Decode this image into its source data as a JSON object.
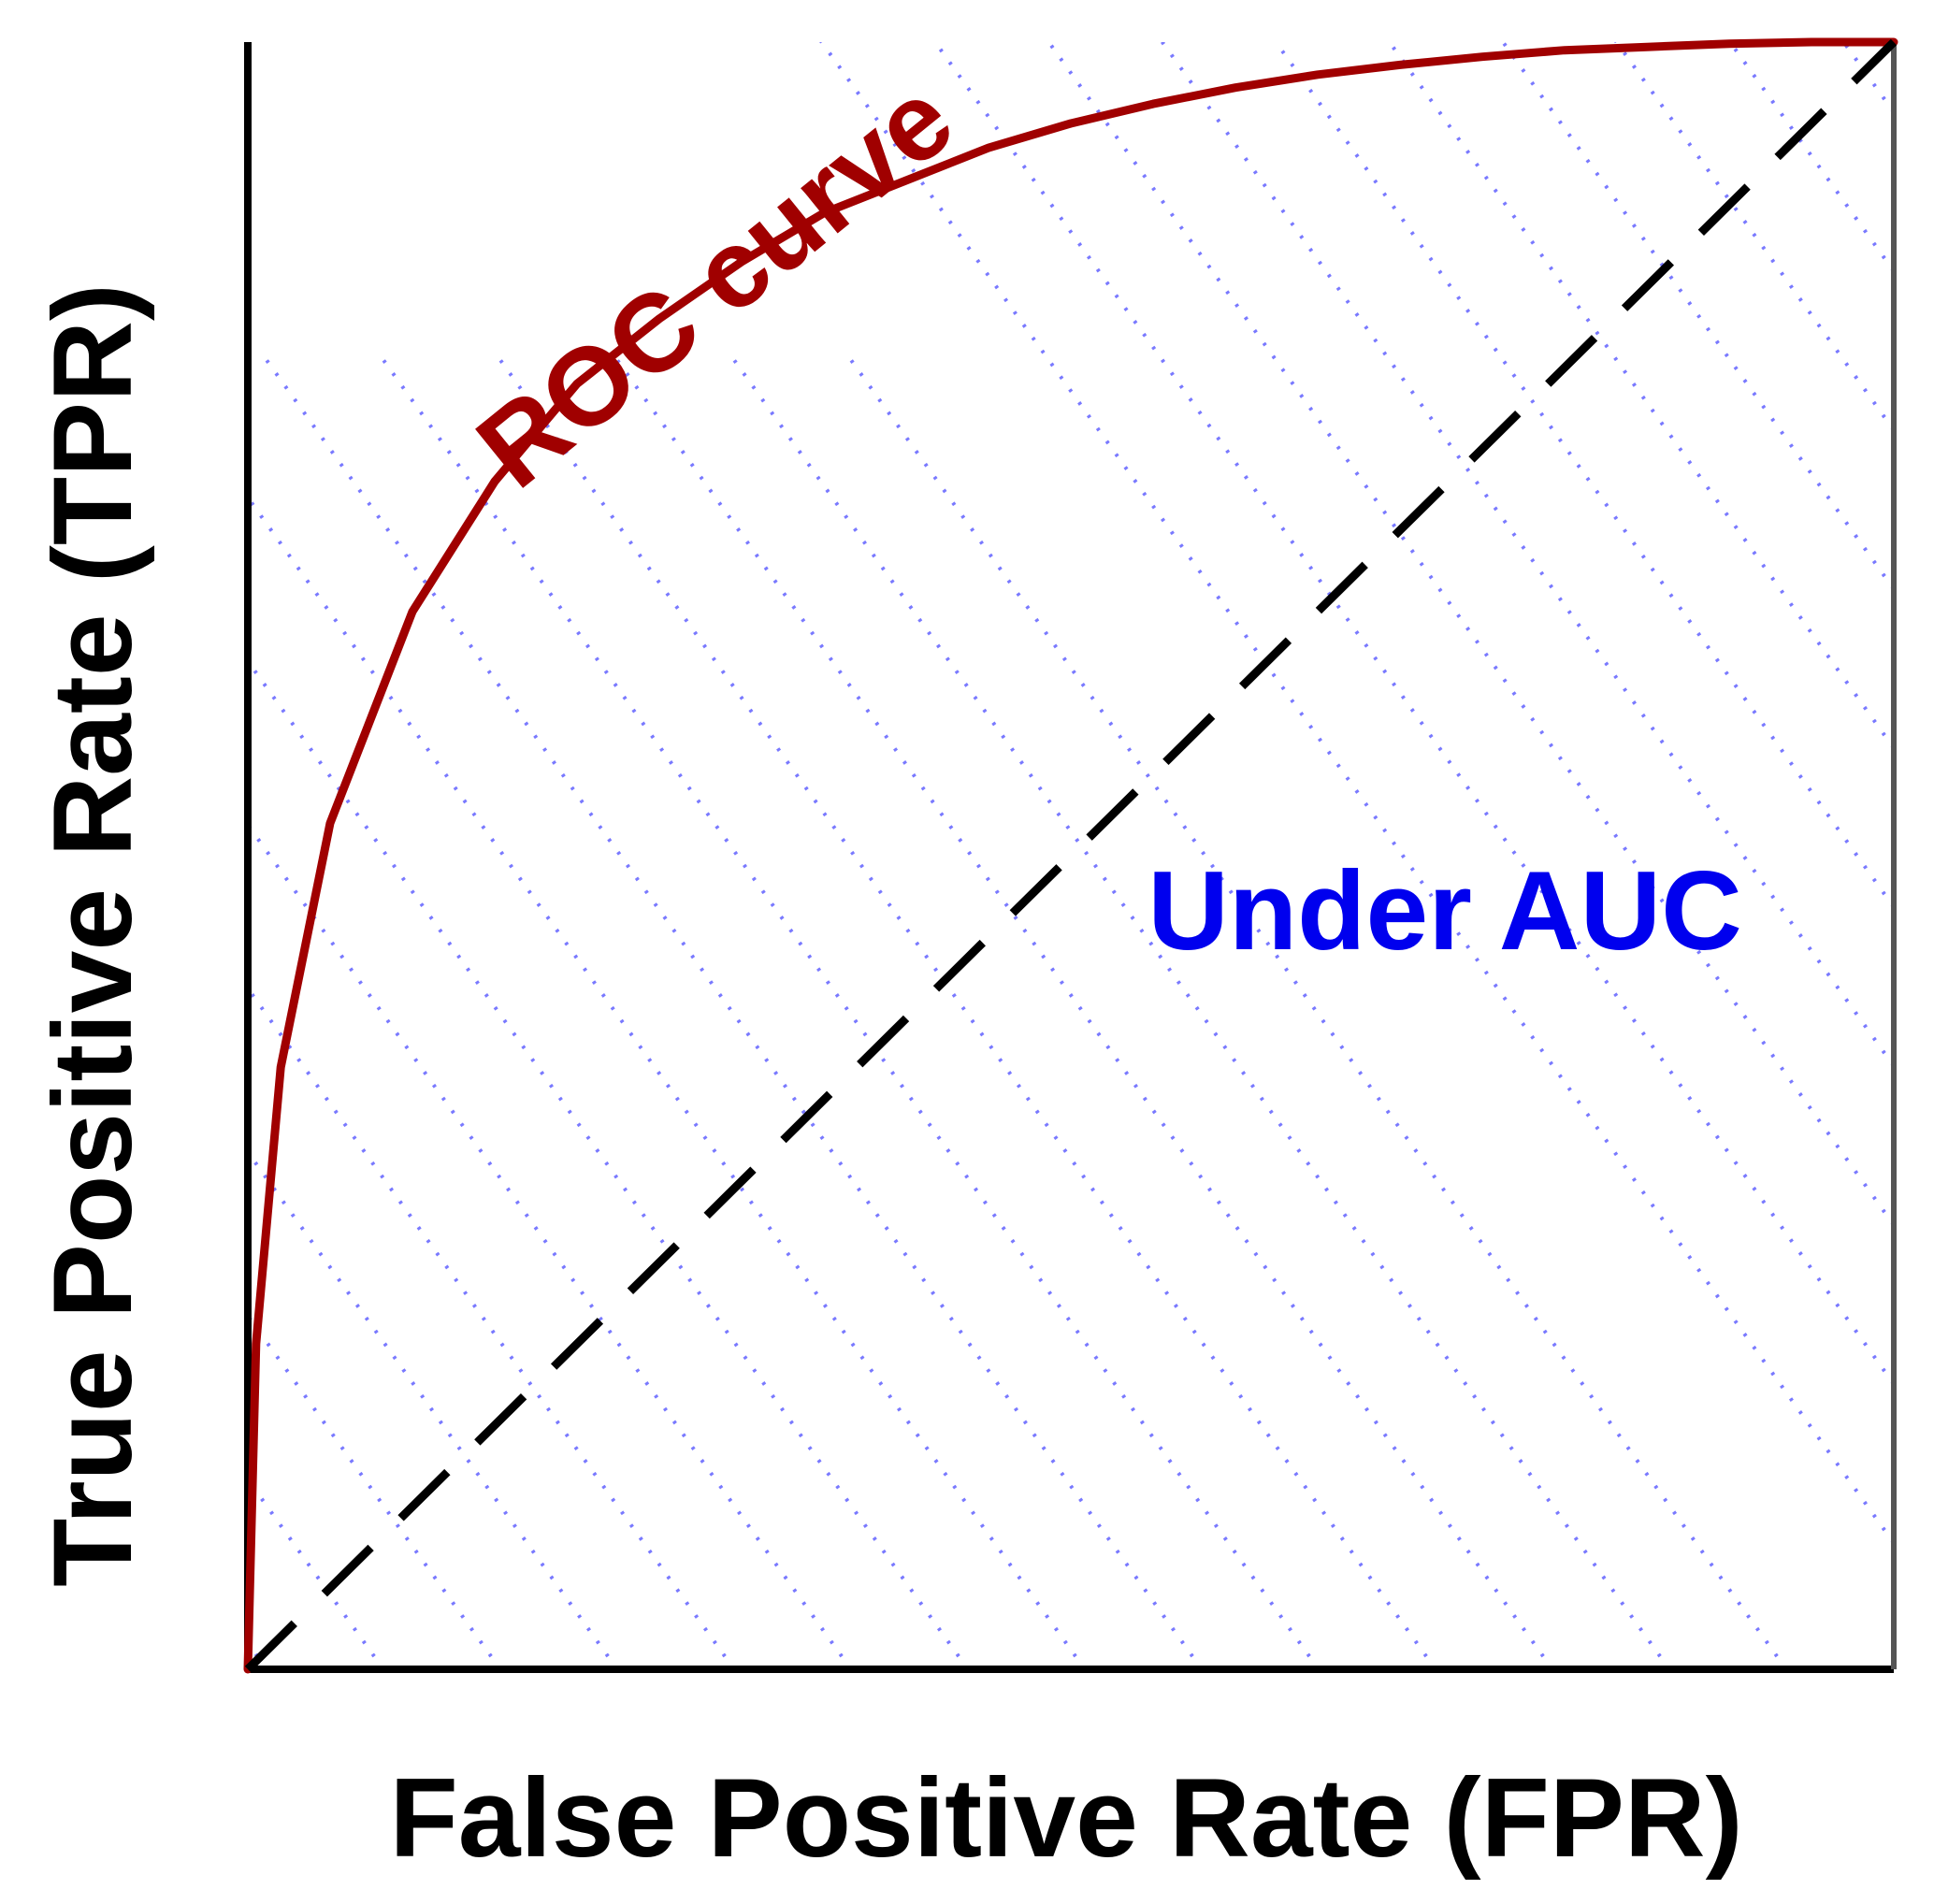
{
  "chart_data": {
    "type": "line",
    "title": "",
    "xlabel": "False Positive Rate (FPR)",
    "ylabel": "True Positive Rate (TPR)",
    "xlim": [
      0,
      1
    ],
    "ylim": [
      0,
      1
    ],
    "grid": false,
    "legend": "none",
    "series": [
      {
        "name": "ROC curve",
        "color": "#a00000",
        "line_style": "solid",
        "x": [
          0.0,
          0.005,
          0.02,
          0.05,
          0.1,
          0.15,
          0.2,
          0.25,
          0.3,
          0.35,
          0.4,
          0.45,
          0.5,
          0.55,
          0.6,
          0.65,
          0.7,
          0.75,
          0.8,
          0.85,
          0.9,
          0.95,
          1.0
        ],
        "y": [
          0.0,
          0.2,
          0.37,
          0.52,
          0.65,
          0.73,
          0.79,
          0.83,
          0.865,
          0.895,
          0.915,
          0.935,
          0.95,
          0.962,
          0.972,
          0.98,
          0.986,
          0.991,
          0.995,
          0.997,
          0.999,
          1.0,
          1.0
        ]
      },
      {
        "name": "",
        "color": "#000000",
        "line_style": "dashed",
        "x": [
          0,
          1
        ],
        "y": [
          0,
          1
        ]
      }
    ],
    "annotations": [
      {
        "text": "ROC curve",
        "color": "#a00000"
      },
      {
        "text": "Under AUC",
        "color": "#0000ee"
      }
    ],
    "hatch_color": "#3333ff"
  }
}
